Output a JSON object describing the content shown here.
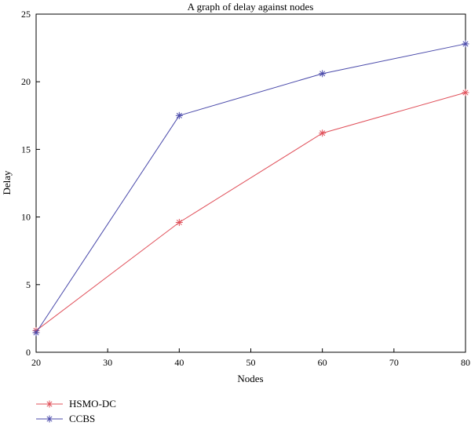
{
  "chart_data": {
    "type": "line",
    "title": "A graph of delay against nodes",
    "xlabel": "Nodes",
    "ylabel": "Delay",
    "xlim": [
      20,
      80
    ],
    "ylim": [
      0,
      25
    ],
    "x_ticks": [
      20,
      30,
      40,
      50,
      60,
      70,
      80
    ],
    "y_ticks": [
      0,
      5,
      10,
      15,
      20,
      25
    ],
    "x": [
      20,
      40,
      60,
      80
    ],
    "series": [
      {
        "name": "HSMO-DC",
        "color": "#e0505a",
        "marker": "star",
        "values": [
          1.6,
          9.6,
          16.2,
          19.2
        ]
      },
      {
        "name": "CCBS",
        "color": "#4a4aaa",
        "marker": "star",
        "values": [
          1.45,
          17.5,
          20.6,
          22.8
        ]
      }
    ],
    "grid": false,
    "legend_position": "bottom-left"
  }
}
